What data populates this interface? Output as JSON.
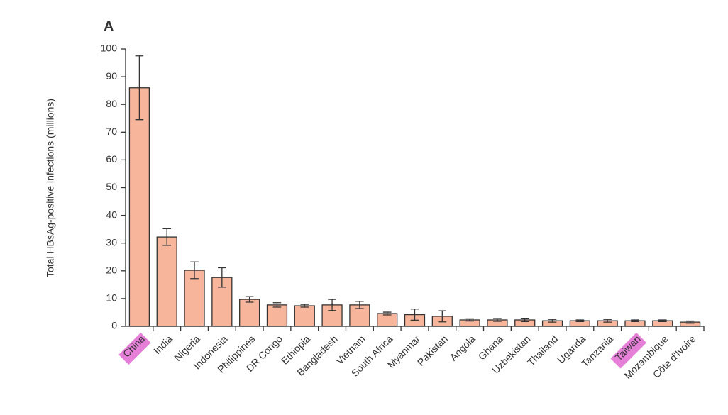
{
  "chart_data": {
    "type": "bar",
    "panel_label": "A",
    "ylabel": "Total HBsAg-positive infections (millions)",
    "categories": [
      "China",
      "India",
      "Nigeria",
      "Indonesia",
      "Philippines",
      "DR Congo",
      "Ethiopia",
      "Bangladesh",
      "Vietnam",
      "South Africa",
      "Myanmar",
      "Pakistan",
      "Angola",
      "Ghana",
      "Uzbekistan",
      "Thailand",
      "Uganda",
      "Tanzania",
      "Taiwan",
      "Mozambique",
      "Côte d'Ivoire"
    ],
    "values": [
      86,
      32.2,
      20.2,
      17.6,
      9.7,
      7.7,
      7.4,
      7.7,
      7.7,
      4.6,
      4.2,
      3.6,
      2.3,
      2.3,
      2.3,
      2,
      2,
      2,
      2,
      2,
      1.5
    ],
    "errors": [
      11.5,
      3,
      3,
      3.5,
      1,
      0.8,
      0.5,
      2,
      1.3,
      0.5,
      2,
      2,
      0.4,
      0.5,
      0.6,
      0.5,
      0.3,
      0.5,
      0.3,
      0.3,
      0.4
    ],
    "color": "#f7b59b",
    "highlighted": [
      0,
      18
    ],
    "highlight_color": "#e57fd8",
    "ylim": [
      0,
      100
    ],
    "yticks": [
      0,
      10,
      20,
      30,
      40,
      50,
      60,
      70,
      80,
      90,
      100
    ]
  }
}
